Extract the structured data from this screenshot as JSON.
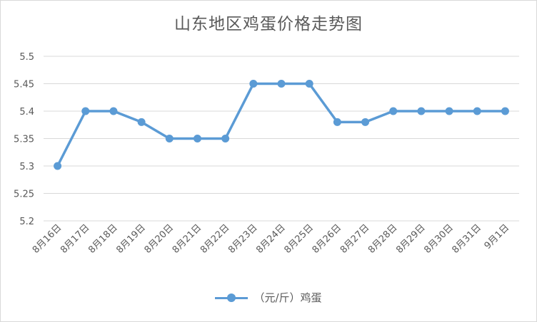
{
  "chart_data": {
    "type": "line",
    "title": "山东地区鸡蛋价格走势图",
    "categories": [
      "8月16日",
      "8月17日",
      "8月18日",
      "8月19日",
      "8月20日",
      "8月21日",
      "8月22日",
      "8月23日",
      "8月24日",
      "8月25日",
      "8月26日",
      "8月27日",
      "8月28日",
      "8月29日",
      "8月30日",
      "8月31日",
      "9月1日"
    ],
    "series": [
      {
        "name": "（元/斤）鸡蛋",
        "values": [
          5.3,
          5.4,
          5.4,
          5.38,
          5.35,
          5.35,
          5.35,
          5.45,
          5.45,
          5.45,
          5.38,
          5.38,
          5.4,
          5.4,
          5.4,
          5.4,
          5.4
        ]
      }
    ],
    "ylim": [
      5.2,
      5.5
    ],
    "yticks": [
      "5.2",
      "5.25",
      "5.3",
      "5.35",
      "5.4",
      "5.45",
      "5.5"
    ],
    "grid": true,
    "legend_position": "bottom",
    "color": "#5b9bd5"
  }
}
